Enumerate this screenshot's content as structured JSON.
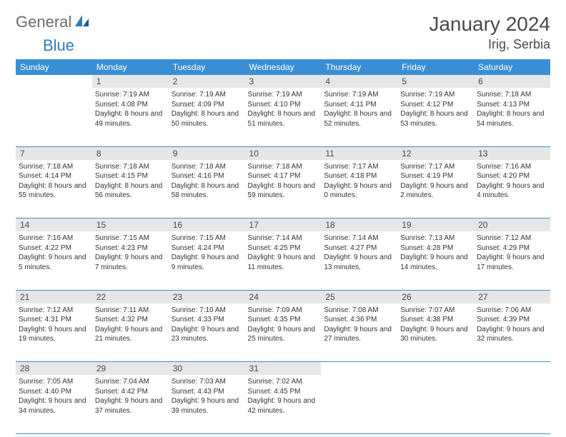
{
  "logo": {
    "text1": "General",
    "text2": "Blue"
  },
  "title": "January 2024",
  "location": "Irig, Serbia",
  "colors": {
    "header_bg": "#3a8fd4",
    "header_text": "#ffffff",
    "daynum_bg": "#e6e6e6",
    "border": "#3a8fd4",
    "logo_gray": "#6a6a6a",
    "logo_blue": "#2e7bbf"
  },
  "day_headers": [
    "Sunday",
    "Monday",
    "Tuesday",
    "Wednesday",
    "Thursday",
    "Friday",
    "Saturday"
  ],
  "weeks": [
    {
      "nums": [
        "",
        "1",
        "2",
        "3",
        "4",
        "5",
        "6"
      ],
      "cells": [
        null,
        {
          "sunrise": "7:19 AM",
          "sunset": "4:08 PM",
          "daylight": "8 hours and 49 minutes."
        },
        {
          "sunrise": "7:19 AM",
          "sunset": "4:09 PM",
          "daylight": "8 hours and 50 minutes."
        },
        {
          "sunrise": "7:19 AM",
          "sunset": "4:10 PM",
          "daylight": "8 hours and 51 minutes."
        },
        {
          "sunrise": "7:19 AM",
          "sunset": "4:11 PM",
          "daylight": "8 hours and 52 minutes."
        },
        {
          "sunrise": "7:19 AM",
          "sunset": "4:12 PM",
          "daylight": "8 hours and 53 minutes."
        },
        {
          "sunrise": "7:18 AM",
          "sunset": "4:13 PM",
          "daylight": "8 hours and 54 minutes."
        }
      ]
    },
    {
      "nums": [
        "7",
        "8",
        "9",
        "10",
        "11",
        "12",
        "13"
      ],
      "cells": [
        {
          "sunrise": "7:18 AM",
          "sunset": "4:14 PM",
          "daylight": "8 hours and 55 minutes."
        },
        {
          "sunrise": "7:18 AM",
          "sunset": "4:15 PM",
          "daylight": "8 hours and 56 minutes."
        },
        {
          "sunrise": "7:18 AM",
          "sunset": "4:16 PM",
          "daylight": "8 hours and 58 minutes."
        },
        {
          "sunrise": "7:18 AM",
          "sunset": "4:17 PM",
          "daylight": "8 hours and 59 minutes."
        },
        {
          "sunrise": "7:17 AM",
          "sunset": "4:18 PM",
          "daylight": "9 hours and 0 minutes."
        },
        {
          "sunrise": "7:17 AM",
          "sunset": "4:19 PM",
          "daylight": "9 hours and 2 minutes."
        },
        {
          "sunrise": "7:16 AM",
          "sunset": "4:20 PM",
          "daylight": "9 hours and 4 minutes."
        }
      ]
    },
    {
      "nums": [
        "14",
        "15",
        "16",
        "17",
        "18",
        "19",
        "20"
      ],
      "cells": [
        {
          "sunrise": "7:16 AM",
          "sunset": "4:22 PM",
          "daylight": "9 hours and 5 minutes."
        },
        {
          "sunrise": "7:15 AM",
          "sunset": "4:23 PM",
          "daylight": "9 hours and 7 minutes."
        },
        {
          "sunrise": "7:15 AM",
          "sunset": "4:24 PM",
          "daylight": "9 hours and 9 minutes."
        },
        {
          "sunrise": "7:14 AM",
          "sunset": "4:25 PM",
          "daylight": "9 hours and 11 minutes."
        },
        {
          "sunrise": "7:14 AM",
          "sunset": "4:27 PM",
          "daylight": "9 hours and 13 minutes."
        },
        {
          "sunrise": "7:13 AM",
          "sunset": "4:28 PM",
          "daylight": "9 hours and 14 minutes."
        },
        {
          "sunrise": "7:12 AM",
          "sunset": "4:29 PM",
          "daylight": "9 hours and 17 minutes."
        }
      ]
    },
    {
      "nums": [
        "21",
        "22",
        "23",
        "24",
        "25",
        "26",
        "27"
      ],
      "cells": [
        {
          "sunrise": "7:12 AM",
          "sunset": "4:31 PM",
          "daylight": "9 hours and 19 minutes."
        },
        {
          "sunrise": "7:11 AM",
          "sunset": "4:32 PM",
          "daylight": "9 hours and 21 minutes."
        },
        {
          "sunrise": "7:10 AM",
          "sunset": "4:33 PM",
          "daylight": "9 hours and 23 minutes."
        },
        {
          "sunrise": "7:09 AM",
          "sunset": "4:35 PM",
          "daylight": "9 hours and 25 minutes."
        },
        {
          "sunrise": "7:08 AM",
          "sunset": "4:36 PM",
          "daylight": "9 hours and 27 minutes."
        },
        {
          "sunrise": "7:07 AM",
          "sunset": "4:38 PM",
          "daylight": "9 hours and 30 minutes."
        },
        {
          "sunrise": "7:06 AM",
          "sunset": "4:39 PM",
          "daylight": "9 hours and 32 minutes."
        }
      ]
    },
    {
      "nums": [
        "28",
        "29",
        "30",
        "31",
        "",
        "",
        ""
      ],
      "cells": [
        {
          "sunrise": "7:05 AM",
          "sunset": "4:40 PM",
          "daylight": "9 hours and 34 minutes."
        },
        {
          "sunrise": "7:04 AM",
          "sunset": "4:42 PM",
          "daylight": "9 hours and 37 minutes."
        },
        {
          "sunrise": "7:03 AM",
          "sunset": "4:43 PM",
          "daylight": "9 hours and 39 minutes."
        },
        {
          "sunrise": "7:02 AM",
          "sunset": "4:45 PM",
          "daylight": "9 hours and 42 minutes."
        },
        null,
        null,
        null
      ]
    }
  ],
  "labels": {
    "sunrise": "Sunrise:",
    "sunset": "Sunset:",
    "daylight": "Daylight:"
  }
}
